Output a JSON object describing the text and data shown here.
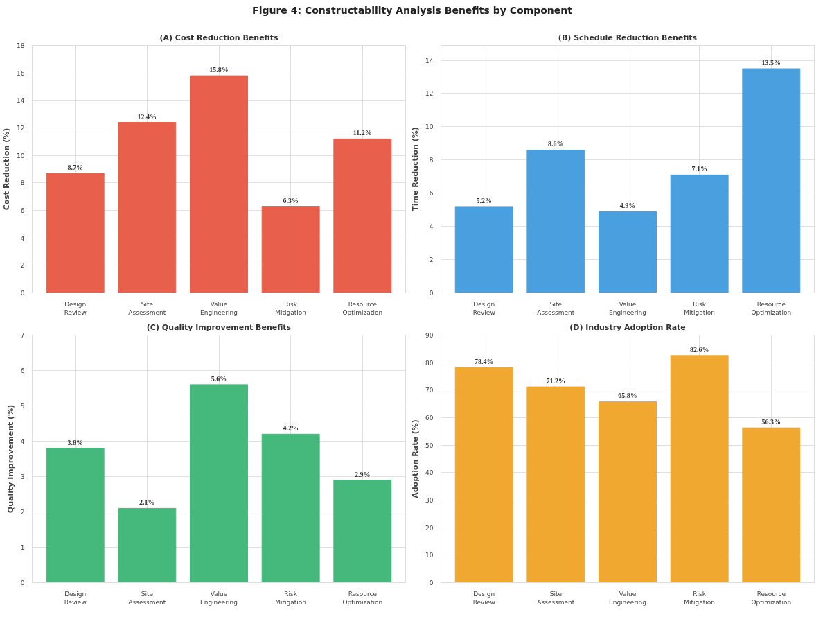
{
  "chart_data": [
    {
      "type": "other",
      "title": "Figure 4: Constructability Analysis Benefits by Component"
    },
    {
      "type": "bar",
      "title": "(A) Cost Reduction Benefits",
      "ylabel": "Cost Reduction (%)",
      "categories": [
        "Design\nReview",
        "Site\nAssessment",
        "Value\nEngineering",
        "Risk\nMitigation",
        "Resource\nOptimization"
      ],
      "values": [
        8.7,
        12.4,
        15.8,
        6.3,
        11.2
      ],
      "value_labels": [
        "8.7%",
        "12.4%",
        "15.8%",
        "6.3%",
        "11.2%"
      ],
      "color": "#e8604c",
      "ylim": [
        0,
        18
      ],
      "yticks": [
        0,
        2,
        4,
        6,
        8,
        10,
        12,
        14,
        16,
        18
      ],
      "grid": true
    },
    {
      "type": "bar",
      "title": "(B) Schedule Reduction Benefits",
      "ylabel": "Time Reduction (%)",
      "categories": [
        "Design\nReview",
        "Site\nAssessment",
        "Value\nEngineering",
        "Risk\nMitigation",
        "Resource\nOptimization"
      ],
      "values": [
        5.2,
        8.6,
        4.9,
        7.1,
        13.5
      ],
      "value_labels": [
        "5.2%",
        "8.6%",
        "4.9%",
        "7.1%",
        "13.5%"
      ],
      "color": "#4a9fdf",
      "ylim": [
        0,
        14.9
      ],
      "yticks": [
        0,
        2,
        4,
        6,
        8,
        10,
        12,
        14
      ],
      "grid": true
    },
    {
      "type": "bar",
      "title": "(C) Quality Improvement Benefits",
      "ylabel": "Quality Improvement (%)",
      "categories": [
        "Design\nReview",
        "Site\nAssessment",
        "Value\nEngineering",
        "Risk\nMitigation",
        "Resource\nOptimization"
      ],
      "values": [
        3.8,
        2.1,
        5.6,
        4.2,
        2.9
      ],
      "value_labels": [
        "3.8%",
        "2.1%",
        "5.6%",
        "4.2%",
        "2.9%"
      ],
      "color": "#45b97c",
      "ylim": [
        0,
        7
      ],
      "yticks": [
        0,
        1,
        2,
        3,
        4,
        5,
        6,
        7
      ],
      "grid": true
    },
    {
      "type": "bar",
      "title": "(D) Industry Adoption Rate",
      "ylabel": "Adoption Rate (%)",
      "categories": [
        "Design\nReview",
        "Site\nAssessment",
        "Value\nEngineering",
        "Risk\nMitigation",
        "Resource\nOptimization"
      ],
      "values": [
        78.4,
        71.2,
        65.8,
        82.6,
        56.3
      ],
      "value_labels": [
        "78.4%",
        "71.2%",
        "65.8%",
        "82.6%",
        "56.3%"
      ],
      "color": "#f0a830",
      "ylim": [
        0,
        90
      ],
      "yticks": [
        0,
        10,
        20,
        30,
        40,
        50,
        60,
        70,
        80,
        90
      ],
      "grid": true
    }
  ]
}
